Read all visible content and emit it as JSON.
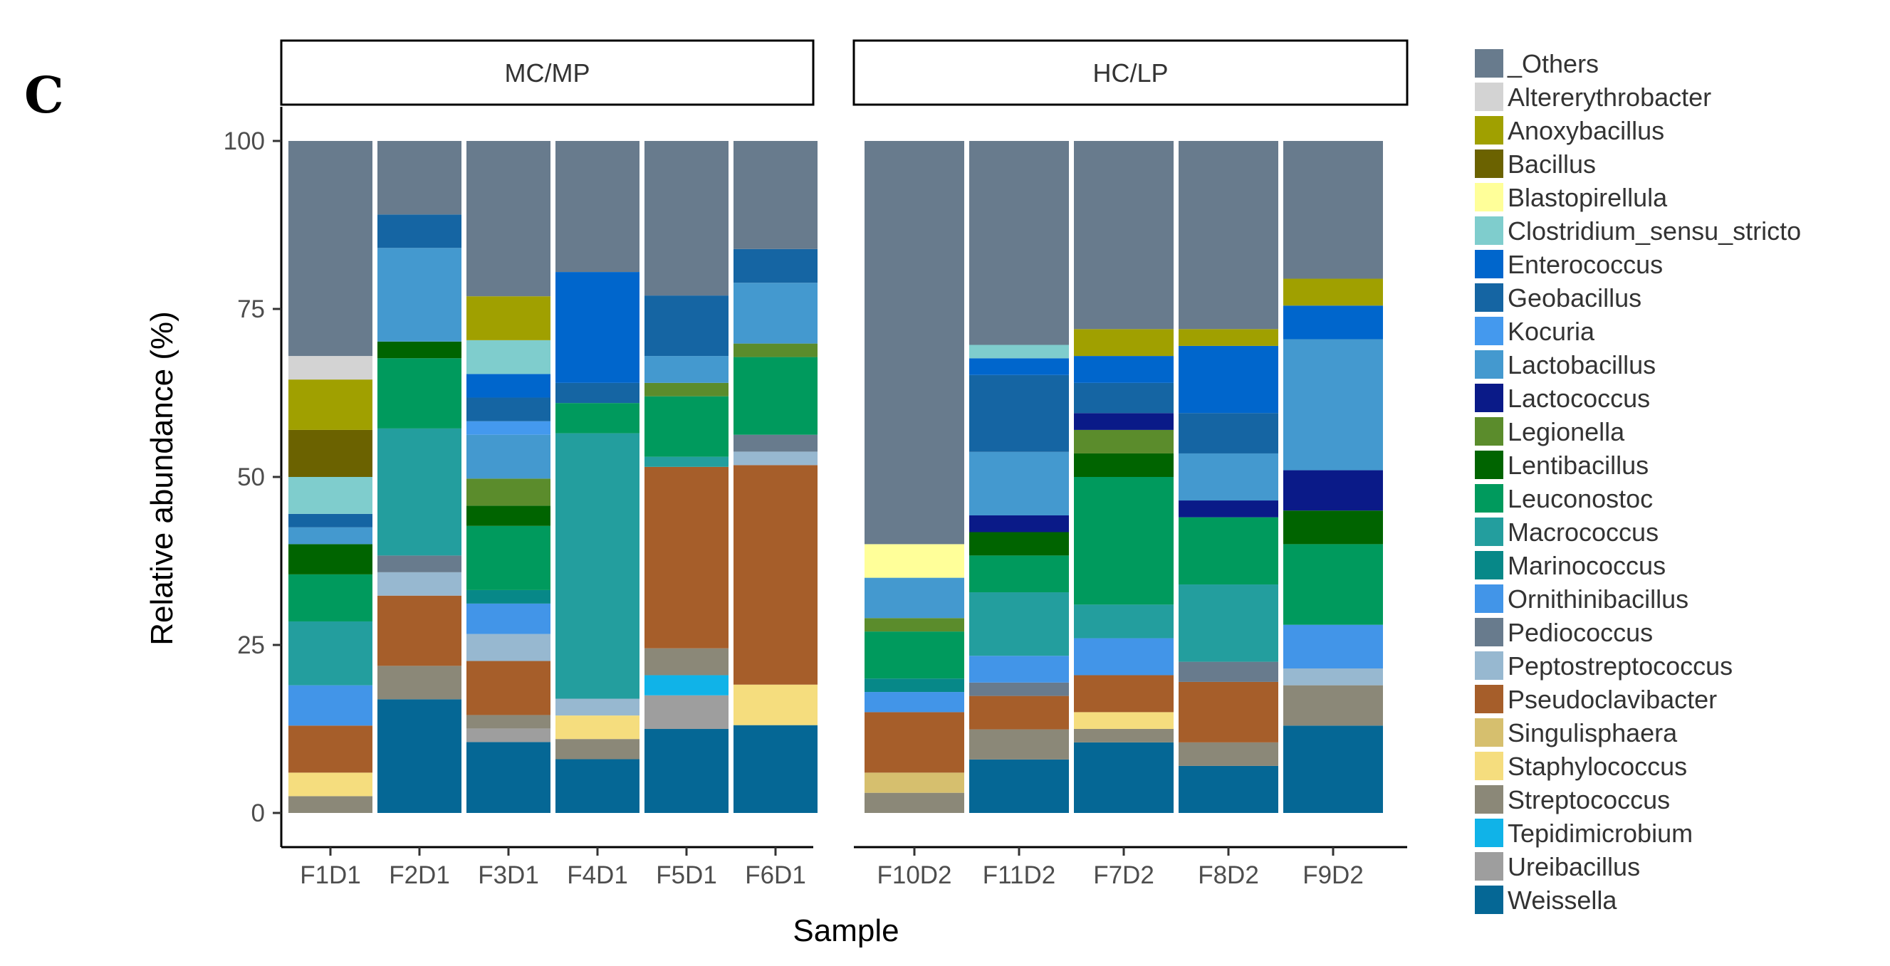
{
  "figure_label": "C",
  "chart_data": {
    "type": "bar",
    "stacked": true,
    "faceted": true,
    "xlabel": "Sample",
    "ylabel": "Relative abundance (%)",
    "ylim": [
      0,
      100
    ],
    "yticks": [
      0,
      25,
      50,
      75,
      100
    ],
    "yticklabels": [
      "0",
      "25",
      "50",
      "75",
      "100"
    ],
    "panels": [
      {
        "label": "MC/MP",
        "samples": [
          "F1D1",
          "F2D1",
          "F3D1",
          "F4D1",
          "F5D1",
          "F6D1"
        ]
      },
      {
        "label": "HC/LP",
        "samples": [
          "F10D2",
          "F11D2",
          "F7D2",
          "F8D2",
          "F9D2"
        ]
      }
    ],
    "legend": {
      "position": "right"
    },
    "stack_order": [
      "Weissella",
      "Ureibacillus",
      "Tepidimicrobium",
      "Streptococcus",
      "Staphylococcus",
      "Singulisphaera",
      "Pseudoclavibacter",
      "Peptostreptococcus",
      "Pediococcus",
      "Ornithinibacillus",
      "Marinococcus",
      "Macrococcus",
      "Leuconostoc",
      "Lentibacillus",
      "Legionella",
      "Lactococcus",
      "Lactobacillus",
      "Kocuria",
      "Geobacillus",
      "Enterococcus",
      "Clostridium_sensu_stricto",
      "Blastopirellula",
      "Bacillus",
      "Anoxybacillus",
      "Altererythrobacter",
      "_Others"
    ],
    "series": [
      {
        "name": "_Others",
        "color": "#687b8d",
        "values": {
          "F1D1": 32,
          "F2D1": 11,
          "F3D1": 23,
          "F4D1": 19.5,
          "F5D1": 23,
          "F6D1": 16,
          "F10D2": 60,
          "F11D2": 30.5,
          "F7D2": 28,
          "F8D2": 28,
          "F9D2": 20.5
        }
      },
      {
        "name": "Altererythrobacter",
        "color": "#d3d3d3",
        "values": {
          "F1D1": 3.5,
          "F2D1": 0,
          "F3D1": 0,
          "F4D1": 0,
          "F5D1": 0,
          "F6D1": 0,
          "F10D2": 0,
          "F11D2": 0,
          "F7D2": 0,
          "F8D2": 0,
          "F9D2": 0
        }
      },
      {
        "name": "Anoxybacillus",
        "color": "#a0a000",
        "values": {
          "F1D1": 7.5,
          "F2D1": 0,
          "F3D1": 6.5,
          "F4D1": 0,
          "F5D1": 0,
          "F6D1": 0,
          "F10D2": 0,
          "F11D2": 0,
          "F7D2": 4,
          "F8D2": 2.5,
          "F9D2": 4
        }
      },
      {
        "name": "Bacillus",
        "color": "#6b6200",
        "values": {
          "F1D1": 7,
          "F2D1": 0,
          "F3D1": 0,
          "F4D1": 0,
          "F5D1": 0,
          "F6D1": 0,
          "F10D2": 0,
          "F11D2": 0,
          "F7D2": 0,
          "F8D2": 0,
          "F9D2": 0
        }
      },
      {
        "name": "Blastopirellula",
        "color": "#ffff99",
        "values": {
          "F1D1": 0,
          "F2D1": 0,
          "F3D1": 0,
          "F4D1": 0,
          "F5D1": 0,
          "F6D1": 0,
          "F10D2": 5,
          "F11D2": 0,
          "F7D2": 0,
          "F8D2": 0,
          "F9D2": 0
        }
      },
      {
        "name": "Clostridium_sensu_stricto",
        "color": "#7fcdcd",
        "values": {
          "F1D1": 5.5,
          "F2D1": 0,
          "F3D1": 5,
          "F4D1": 0,
          "F5D1": 0,
          "F6D1": 0,
          "F10D2": 0,
          "F11D2": 2,
          "F7D2": 0,
          "F8D2": 0,
          "F9D2": 0
        }
      },
      {
        "name": "Enterococcus",
        "color": "#0066cc",
        "values": {
          "F1D1": 0,
          "F2D1": 0,
          "F3D1": 3.5,
          "F4D1": 16.5,
          "F5D1": 0,
          "F6D1": 0,
          "F10D2": 0,
          "F11D2": 2.5,
          "F7D2": 4,
          "F8D2": 10,
          "F9D2": 5
        }
      },
      {
        "name": "Geobacillus",
        "color": "#1565a3",
        "values": {
          "F1D1": 2,
          "F2D1": 5,
          "F3D1": 3.5,
          "F4D1": 3,
          "F5D1": 9,
          "F6D1": 5,
          "F10D2": 0,
          "F11D2": 11.5,
          "F7D2": 4.5,
          "F8D2": 6,
          "F9D2": 0
        }
      },
      {
        "name": "Kocuria",
        "color": "#4499ee",
        "values": {
          "F1D1": 0,
          "F2D1": 0,
          "F3D1": 2,
          "F4D1": 0,
          "F5D1": 0,
          "F6D1": 0,
          "F10D2": 0,
          "F11D2": 0,
          "F7D2": 0,
          "F8D2": 0,
          "F9D2": 0
        }
      },
      {
        "name": "Lactobacillus",
        "color": "#4499cf",
        "values": {
          "F1D1": 2.5,
          "F2D1": 14,
          "F3D1": 6.5,
          "F4D1": 0,
          "F5D1": 4,
          "F6D1": 9,
          "F10D2": 6,
          "F11D2": 9.5,
          "F7D2": 0,
          "F8D2": 7,
          "F9D2": 19.5
        }
      },
      {
        "name": "Lactococcus",
        "color": "#0a1a88",
        "values": {
          "F1D1": 0,
          "F2D1": 0,
          "F3D1": 0,
          "F4D1": 0,
          "F5D1": 0,
          "F6D1": 0,
          "F10D2": 0,
          "F11D2": 2.5,
          "F7D2": 2.5,
          "F8D2": 2.5,
          "F9D2": 6
        }
      },
      {
        "name": "Legionella",
        "color": "#5b8c2c",
        "values": {
          "F1D1": 0,
          "F2D1": 0,
          "F3D1": 4,
          "F4D1": 0,
          "F5D1": 2,
          "F6D1": 2,
          "F10D2": 2,
          "F11D2": 0,
          "F7D2": 3.5,
          "F8D2": 0,
          "F9D2": 0
        }
      },
      {
        "name": "Lentibacillus",
        "color": "#006400",
        "values": {
          "F1D1": 4.5,
          "F2D1": 2.5,
          "F3D1": 3,
          "F4D1": 0,
          "F5D1": 0,
          "F6D1": 0,
          "F10D2": 0,
          "F11D2": 3.5,
          "F7D2": 3.5,
          "F8D2": 0,
          "F9D2": 5
        }
      },
      {
        "name": "Leuconostoc",
        "color": "#009a5d",
        "values": {
          "F1D1": 7,
          "F2D1": 10.5,
          "F3D1": 9.5,
          "F4D1": 4.5,
          "F5D1": 9,
          "F6D1": 11.5,
          "F10D2": 7,
          "F11D2": 5.5,
          "F7D2": 19,
          "F8D2": 10,
          "F9D2": 12
        }
      },
      {
        "name": "Macrococcus",
        "color": "#239e9e",
        "values": {
          "F1D1": 9.5,
          "F2D1": 19,
          "F3D1": 0,
          "F4D1": 39.5,
          "F5D1": 1.5,
          "F6D1": 0,
          "F10D2": 0,
          "F11D2": 9.5,
          "F7D2": 5,
          "F8D2": 11.5,
          "F9D2": 0
        }
      },
      {
        "name": "Marinococcus",
        "color": "#078888",
        "values": {
          "F1D1": 0,
          "F2D1": 0,
          "F3D1": 2,
          "F4D1": 0,
          "F5D1": 0,
          "F6D1": 0,
          "F10D2": 2,
          "F11D2": 0,
          "F7D2": 0,
          "F8D2": 0,
          "F9D2": 0
        }
      },
      {
        "name": "Ornithinibacillus",
        "color": "#4295e8",
        "values": {
          "F1D1": 6,
          "F2D1": 0,
          "F3D1": 4.5,
          "F4D1": 0,
          "F5D1": 0,
          "F6D1": 0,
          "F10D2": 3,
          "F11D2": 4,
          "F7D2": 5.5,
          "F8D2": 0,
          "F9D2": 6.5
        }
      },
      {
        "name": "Pediococcus",
        "color": "#687b8d",
        "values": {
          "F1D1": 0,
          "F2D1": 2.5,
          "F3D1": 0,
          "F4D1": 0,
          "F5D1": 0,
          "F6D1": 2.5,
          "F10D2": 0,
          "F11D2": 2,
          "F7D2": 0,
          "F8D2": 3,
          "F9D2": 0
        }
      },
      {
        "name": "Peptostreptococcus",
        "color": "#97b8d0",
        "values": {
          "F1D1": 0,
          "F2D1": 3.5,
          "F3D1": 4,
          "F4D1": 2.5,
          "F5D1": 0,
          "F6D1": 2,
          "F10D2": 0,
          "F11D2": 0,
          "F7D2": 0,
          "F8D2": 0,
          "F9D2": 2.5
        }
      },
      {
        "name": "Pseudoclavibacter",
        "color": "#a65e2a",
        "values": {
          "F1D1": 7,
          "F2D1": 10.5,
          "F3D1": 8,
          "F4D1": 0,
          "F5D1": 27,
          "F6D1": 32.5,
          "F10D2": 9,
          "F11D2": 5,
          "F7D2": 5.5,
          "F8D2": 9,
          "F9D2": 0
        }
      },
      {
        "name": "Singulisphaera",
        "color": "#d6bf6e",
        "values": {
          "F1D1": 0,
          "F2D1": 0,
          "F3D1": 0,
          "F4D1": 0,
          "F5D1": 0,
          "F6D1": 0,
          "F10D2": 3,
          "F11D2": 0,
          "F7D2": 0,
          "F8D2": 0,
          "F9D2": 0
        }
      },
      {
        "name": "Staphylococcus",
        "color": "#f5dd7e",
        "values": {
          "F1D1": 3.5,
          "F2D1": 0,
          "F3D1": 0,
          "F4D1": 3.5,
          "F5D1": 0,
          "F6D1": 6,
          "F10D2": 0,
          "F11D2": 0,
          "F7D2": 2.5,
          "F8D2": 0,
          "F9D2": 0
        }
      },
      {
        "name": "Streptococcus",
        "color": "#8b8878",
        "values": {
          "F1D1": 2.5,
          "F2D1": 5,
          "F3D1": 2,
          "F4D1": 3,
          "F5D1": 4,
          "F6D1": 0,
          "F10D2": 3,
          "F11D2": 4.5,
          "F7D2": 2,
          "F8D2": 3.5,
          "F9D2": 6
        }
      },
      {
        "name": "Tepidimicrobium",
        "color": "#10b3e8",
        "values": {
          "F1D1": 0,
          "F2D1": 0,
          "F3D1": 0,
          "F4D1": 0,
          "F5D1": 3,
          "F6D1": 0,
          "F10D2": 0,
          "F11D2": 0,
          "F7D2": 0,
          "F8D2": 0,
          "F9D2": 0
        }
      },
      {
        "name": "Ureibacillus",
        "color": "#9e9e9e",
        "values": {
          "F1D1": 0,
          "F2D1": 0,
          "F3D1": 2,
          "F4D1": 0,
          "F5D1": 5,
          "F6D1": 0,
          "F10D2": 0,
          "F11D2": 0,
          "F7D2": 0,
          "F8D2": 0,
          "F9D2": 0
        }
      },
      {
        "name": "Weissella",
        "color": "#056795",
        "values": {
          "F1D1": 0,
          "F2D1": 17,
          "F3D1": 10.5,
          "F4D1": 8,
          "F5D1": 12.5,
          "F6D1": 13,
          "F10D2": 0,
          "F11D2": 8,
          "F7D2": 10.5,
          "F8D2": 7,
          "F9D2": 13
        }
      }
    ]
  }
}
